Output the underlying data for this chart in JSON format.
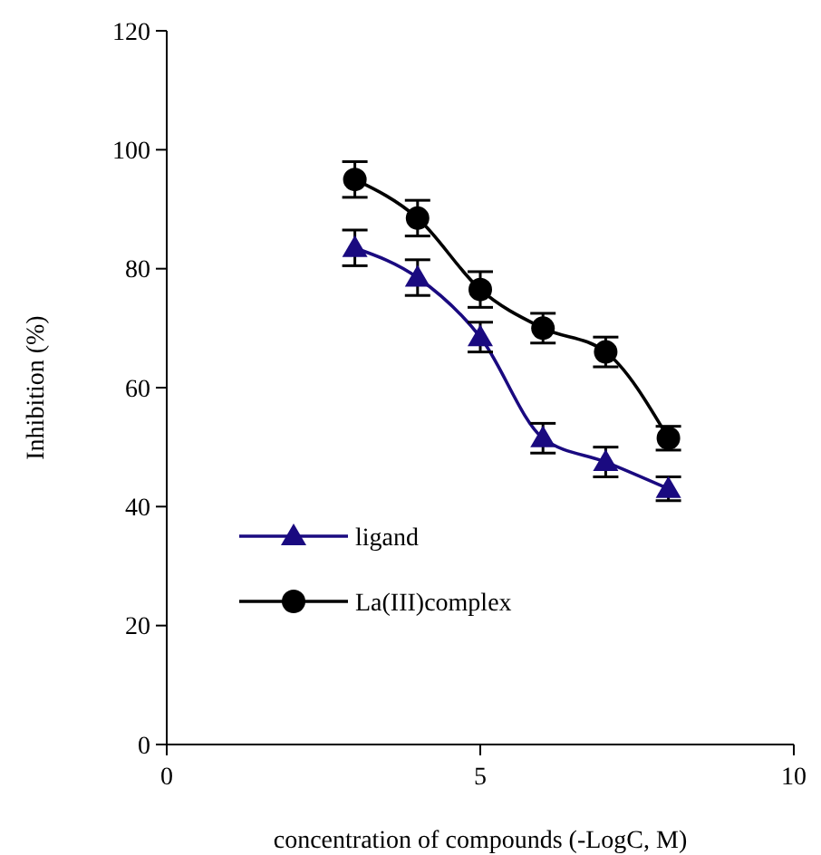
{
  "chart_data": {
    "type": "line",
    "xlabel": "concentration of compounds (-LogC, M)",
    "ylabel": "Inhibition (%)",
    "x": [
      3,
      4,
      5,
      6,
      7,
      8
    ],
    "xlim": [
      0,
      10
    ],
    "xticks": [
      0,
      5,
      10
    ],
    "ylim": [
      0,
      120
    ],
    "yticks": [
      0,
      20,
      40,
      60,
      80,
      100,
      120
    ],
    "grid": false,
    "legend": "bottom left",
    "series": [
      {
        "name": "ligand",
        "color": "#1a0a80",
        "marker": "triangle",
        "values": [
          83.5,
          78.5,
          68.5,
          51.5,
          47.5,
          43
        ],
        "errors": [
          3,
          3,
          2.5,
          2.5,
          2.5,
          2
        ]
      },
      {
        "name": "La(III)complex",
        "color": "#000000",
        "marker": "circle",
        "values": [
          95,
          88.5,
          76.5,
          70,
          66,
          51.5
        ],
        "errors": [
          3,
          3,
          3,
          2.5,
          2.5,
          2
        ]
      }
    ]
  }
}
